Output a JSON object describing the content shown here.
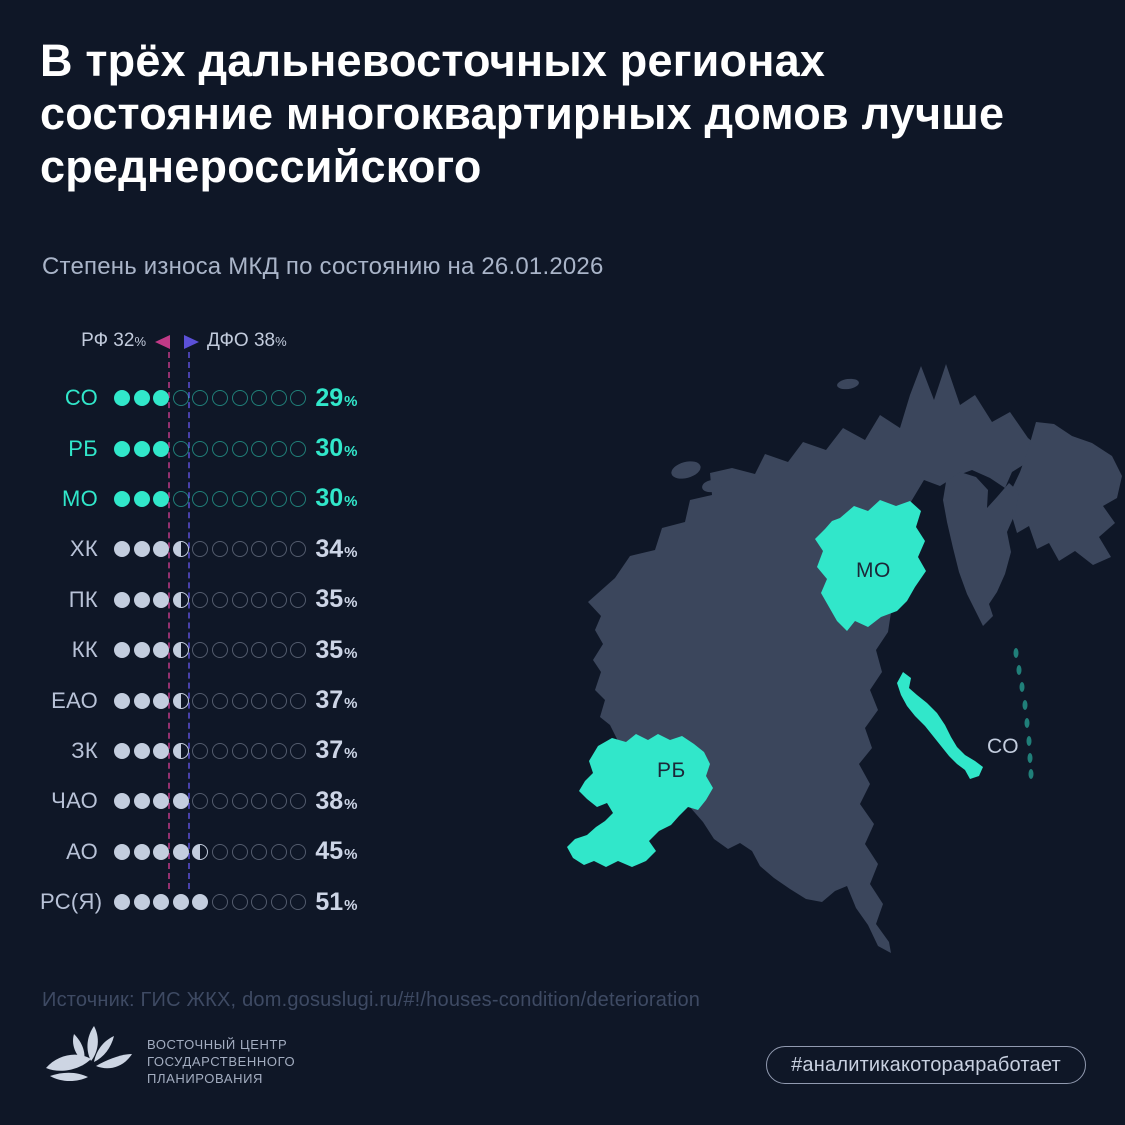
{
  "title": "В трёх дальневосточных регионах состояние многоквартирных домов лучше среднероссийского",
  "subtitle": "Степень износа МКД по состоянию на 26.01.2026",
  "chart_data": {
    "type": "bar",
    "variant": "unit-dot-matrix",
    "title": "Степень износа МКД по состоянию на 26.01.2026",
    "unit": "%",
    "dots_per_row": 10,
    "percent_per_dot": 10,
    "categories": [
      "СО",
      "РБ",
      "МО",
      "ХК",
      "ПК",
      "КК",
      "ЕАО",
      "ЗК",
      "ЧАО",
      "АО",
      "РС(Я)"
    ],
    "values": [
      29,
      30,
      30,
      34,
      35,
      35,
      37,
      37,
      38,
      45,
      51
    ],
    "highlighted_categories": [
      "СО",
      "РБ",
      "МО"
    ],
    "reference_lines": [
      {
        "label": "РФ",
        "value": 32,
        "color": "#c13a87",
        "marker": "left-triangle"
      },
      {
        "label": "ДФО",
        "value": 38,
        "color": "#5b50d8",
        "marker": "right-triangle"
      }
    ],
    "xlim": [
      0,
      100
    ],
    "legend_position": "top-left",
    "grid": false
  },
  "map": {
    "labels": {
      "mo": "МО",
      "rb": "РБ",
      "so": "СО"
    },
    "land_color": "#3b465c",
    "highlight_color": "#31e7ca"
  },
  "colors": {
    "background": "#0f1727",
    "title": "#ffffff",
    "subtitle": "#a9b4c8",
    "accent_teal": "#31e7ca",
    "row_gray": "#c3cdde",
    "marker_pink": "#c13a87",
    "marker_purple": "#5b50d8"
  },
  "source": "Источник: ГИС ЖКХ, dom.gosuslugi.ru/#!/houses-condition/deterioration",
  "footer": {
    "logo_lines": [
      "ВОСТОЧНЫЙ ЦЕНТР",
      "ГОСУДАРСТВЕННОГО",
      "ПЛАНИРОВАНИЯ"
    ],
    "hashtag": "#аналитикакотораяработает"
  }
}
